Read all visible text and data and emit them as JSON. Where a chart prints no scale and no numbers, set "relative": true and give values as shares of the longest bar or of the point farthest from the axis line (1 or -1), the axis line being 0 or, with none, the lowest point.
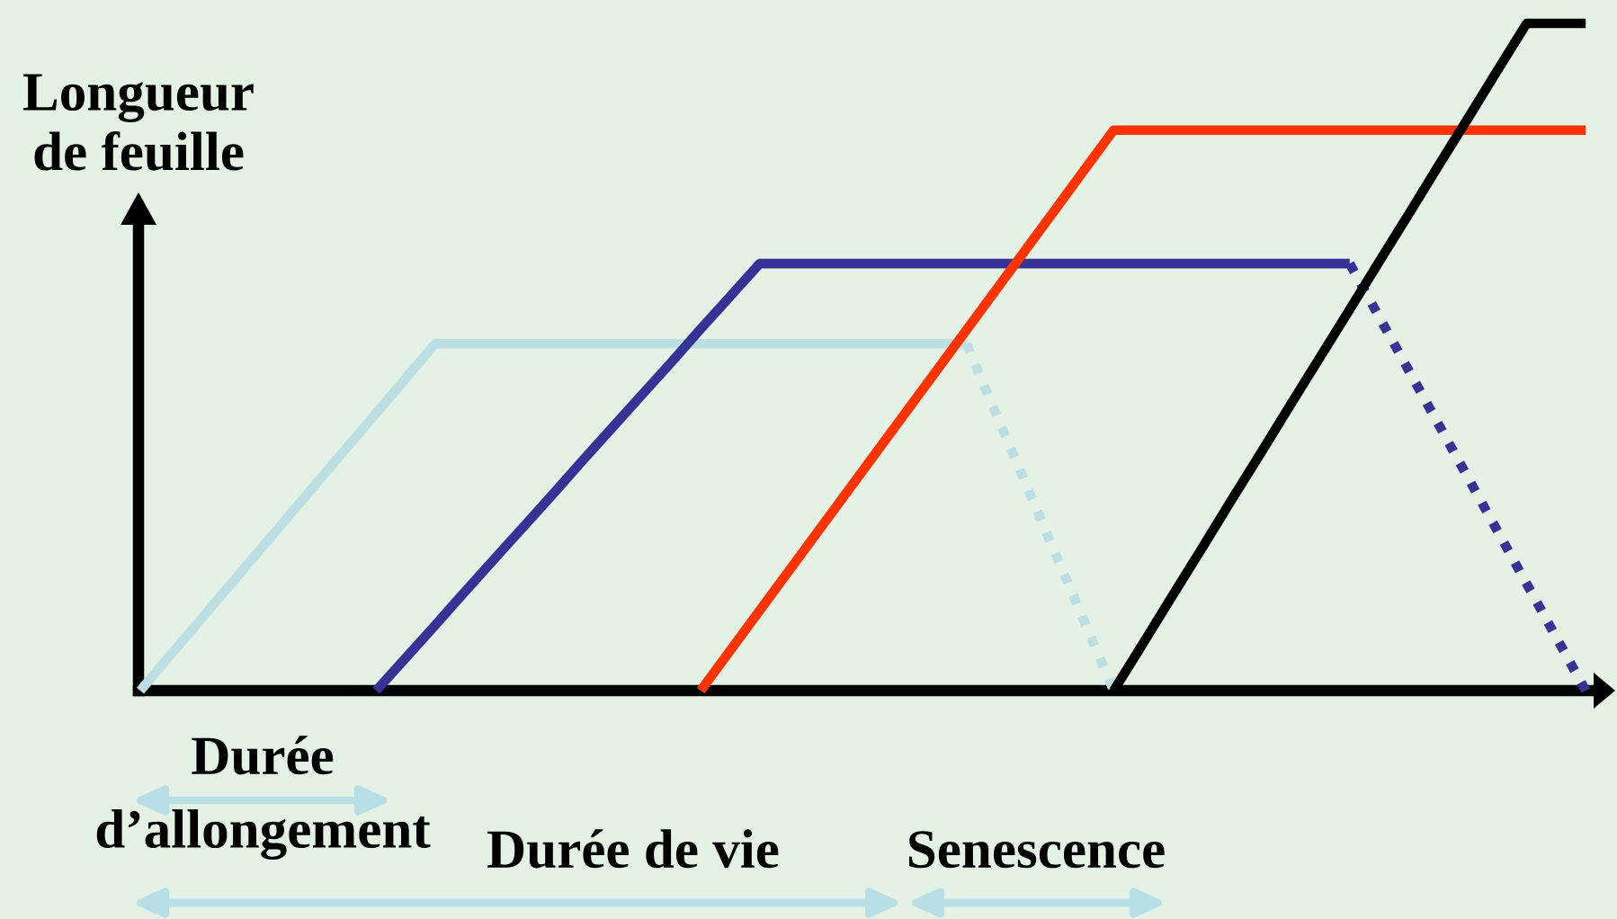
{
  "chart_data": {
    "type": "line",
    "relative": true,
    "ylabel": "Longueur\nde feuille",
    "line_style": "solid",
    "categories": [
      null,
      null,
      null,
      null,
      null,
      null,
      null,
      null,
      null,
      null,
      null,
      null,
      null,
      null,
      null,
      null,
      null,
      null,
      null,
      null,
      null,
      null,
      null,
      null,
      null,
      null,
      null,
      null,
      null,
      null,
      null,
      null,
      null,
      null,
      null,
      null,
      null,
      null,
      null,
      null,
      null,
      null,
      null,
      null,
      null,
      null,
      null,
      null,
      null,
      null
    ],
    "series": [
      {
        "color": "#bcdfe3",
        "values": [
          0,
          0.052,
          0.104,
          0.156,
          0.208,
          0.26,
          0.312,
          0.364,
          0.416,
          0.468,
          0.52,
          0.52,
          0.52,
          0.52,
          0.52,
          0.52,
          0.52,
          0.52,
          0.52,
          0.52,
          0.52,
          0.52,
          0.52,
          0.52,
          0.52,
          0.52,
          0.52,
          0.52,
          0.52,
          null,
          null,
          null,
          null,
          null,
          null,
          null,
          null,
          null,
          null,
          null,
          null,
          null,
          null,
          null,
          null,
          null,
          null,
          null,
          null,
          null
        ]
      },
      {
        "color": "#bcdfe3",
        "line_style": "dotted",
        "values": [
          null,
          null,
          null,
          null,
          null,
          null,
          null,
          null,
          null,
          null,
          null,
          null,
          null,
          null,
          null,
          null,
          null,
          null,
          null,
          null,
          null,
          null,
          null,
          null,
          null,
          null,
          null,
          null,
          0.52,
          0.416,
          0.312,
          0.208,
          0.104,
          0,
          null,
          null,
          null,
          null,
          null,
          null,
          null,
          null,
          null,
          null,
          null,
          null,
          null,
          null,
          null,
          null
        ]
      },
      {
        "color": "#363396",
        "values": [
          null,
          null,
          null,
          null,
          null,
          null,
          null,
          null,
          0,
          0.049,
          0.098,
          0.148,
          0.197,
          0.246,
          0.295,
          0.345,
          0.394,
          0.443,
          0.492,
          0.542,
          0.591,
          0.64,
          0.64,
          0.64,
          0.64,
          0.64,
          0.64,
          0.64,
          0.64,
          0.64,
          0.64,
          0.64,
          0.64,
          0.64,
          0.64,
          0.64,
          0.64,
          0.64,
          0.64,
          0.64,
          0.64,
          0.64,
          null,
          null,
          null,
          null,
          null,
          null,
          null,
          null
        ]
      },
      {
        "color": "#363396",
        "line_style": "dotted",
        "values": [
          null,
          null,
          null,
          null,
          null,
          null,
          null,
          null,
          null,
          null,
          null,
          null,
          null,
          null,
          null,
          null,
          null,
          null,
          null,
          null,
          null,
          null,
          null,
          null,
          null,
          null,
          null,
          null,
          null,
          null,
          null,
          null,
          null,
          null,
          null,
          null,
          null,
          null,
          null,
          null,
          null,
          0.64,
          0.56,
          0.48,
          0.4,
          0.32,
          0.24,
          0.16,
          0.08,
          0
        ]
      },
      {
        "color": "#ff3300",
        "values": [
          null,
          null,
          null,
          null,
          null,
          null,
          null,
          null,
          null,
          null,
          null,
          null,
          null,
          null,
          null,
          null,
          null,
          null,
          null,
          0,
          0.06,
          0.12,
          0.18,
          0.24,
          0.3,
          0.36,
          0.42,
          0.48,
          0.54,
          0.6,
          0.66,
          0.72,
          0.78,
          0.84,
          0.84,
          0.84,
          0.84,
          0.84,
          0.84,
          0.84,
          0.84,
          0.84,
          0.84,
          0.84,
          0.84,
          0.84,
          0.84,
          0.84,
          0.84,
          0.84
        ]
      },
      {
        "color": "#000000",
        "values": [
          null,
          null,
          null,
          null,
          null,
          null,
          null,
          null,
          null,
          null,
          null,
          null,
          null,
          null,
          null,
          null,
          null,
          null,
          null,
          null,
          null,
          null,
          null,
          null,
          null,
          null,
          null,
          null,
          null,
          null,
          null,
          null,
          null,
          0,
          0.071,
          0.143,
          0.214,
          0.286,
          0.357,
          0.429,
          0.5,
          0.571,
          0.643,
          0.714,
          0.786,
          0.857,
          0.929,
          1,
          1,
          1
        ]
      }
    ],
    "annotations": [
      "Durée\nd’allongement",
      "Durée de vie",
      "Senescence"
    ]
  }
}
